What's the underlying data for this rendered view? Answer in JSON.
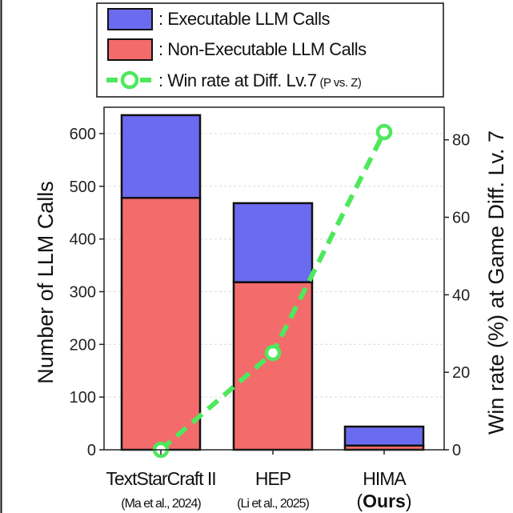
{
  "chart_data": {
    "type": "bar",
    "stacked": true,
    "categories": [
      "TextStarCraft II",
      "HEP",
      "HIMA"
    ],
    "category_sublabels": [
      {
        "prefix": "(",
        "text": "Ma et al., 2024",
        "suffix": ")",
        "bold": false
      },
      {
        "prefix": "(",
        "text": "Li et al., 2025",
        "suffix": ")",
        "bold": false
      },
      {
        "prefix": "(",
        "text": "Ours",
        "suffix": ")",
        "bold": true
      }
    ],
    "series": [
      {
        "name": "Non-Executable LLM Calls",
        "values": [
          478,
          318,
          8
        ],
        "color": "#f36b6b",
        "axis": "left"
      },
      {
        "name": "Executable LLM Calls",
        "values": [
          157,
          150,
          36
        ],
        "color": "#6b6bf0",
        "axis": "left"
      }
    ],
    "line_series": {
      "name": "Win rate at Diff. Lv.7",
      "name_suffix": "(P vs. Z)",
      "values": [
        0,
        25,
        82
      ],
      "color": "#4ee85c",
      "axis": "right"
    },
    "ylabel": "Number of  LLM Calls",
    "y2label": "Win rate (%) at Game Diff. Lv. 7",
    "ylim": [
      0,
      650
    ],
    "y2lim": [
      0,
      88.4
    ],
    "yticks": [
      0,
      100,
      200,
      300,
      400,
      500,
      600
    ],
    "y2ticks": [
      0,
      20,
      40,
      60,
      80
    ],
    "grid": true,
    "legend_position": "top-center"
  },
  "legend": {
    "items": [
      {
        "key": "executable",
        "label": ": Executable LLM Calls",
        "swatch": "rect",
        "color": "#6b6bf0"
      },
      {
        "key": "non_executable",
        "label": ": Non-Executable LLM Calls",
        "swatch": "rect",
        "color": "#f36b6b"
      },
      {
        "key": "win_rate",
        "label": ": Win rate at Diff. Lv.7",
        "suffix": "(P vs. Z)",
        "swatch": "line",
        "color": "#4ee85c"
      }
    ]
  }
}
